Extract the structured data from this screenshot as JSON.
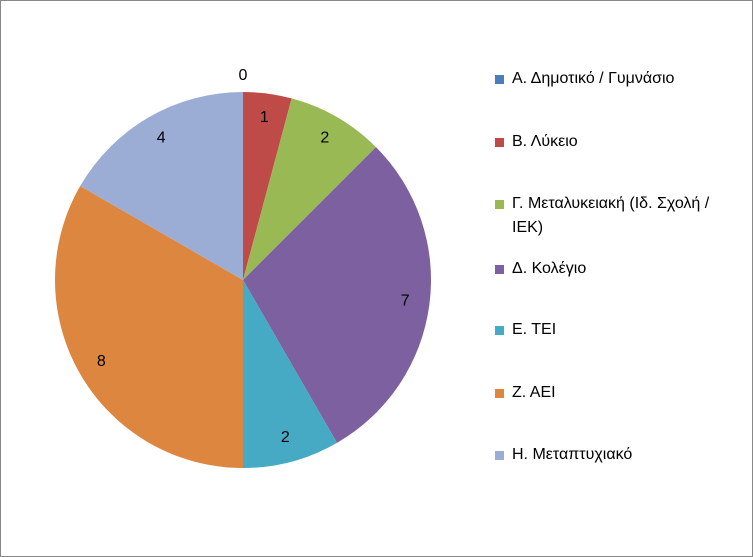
{
  "chart_data": {
    "type": "pie",
    "categories": [
      "Α. Δημοτικό / Γυμνάσιο",
      "Β. Λύκειο",
      "Γ. Μεταλυκειακή (Ιδ. Σχολή /ΙΕΚ)",
      "Δ. Κολέγιο",
      "Ε. ΤΕΙ",
      "Ζ. ΑΕΙ",
      "Η. Μεταπτυχιακό"
    ],
    "values": [
      0,
      1,
      2,
      7,
      2,
      8,
      4
    ],
    "colors": [
      "#4a7ebb",
      "#be4b48",
      "#98b954",
      "#7d60a0",
      "#46aac5",
      "#dd8640",
      "#9badd4"
    ],
    "legend": "right"
  }
}
